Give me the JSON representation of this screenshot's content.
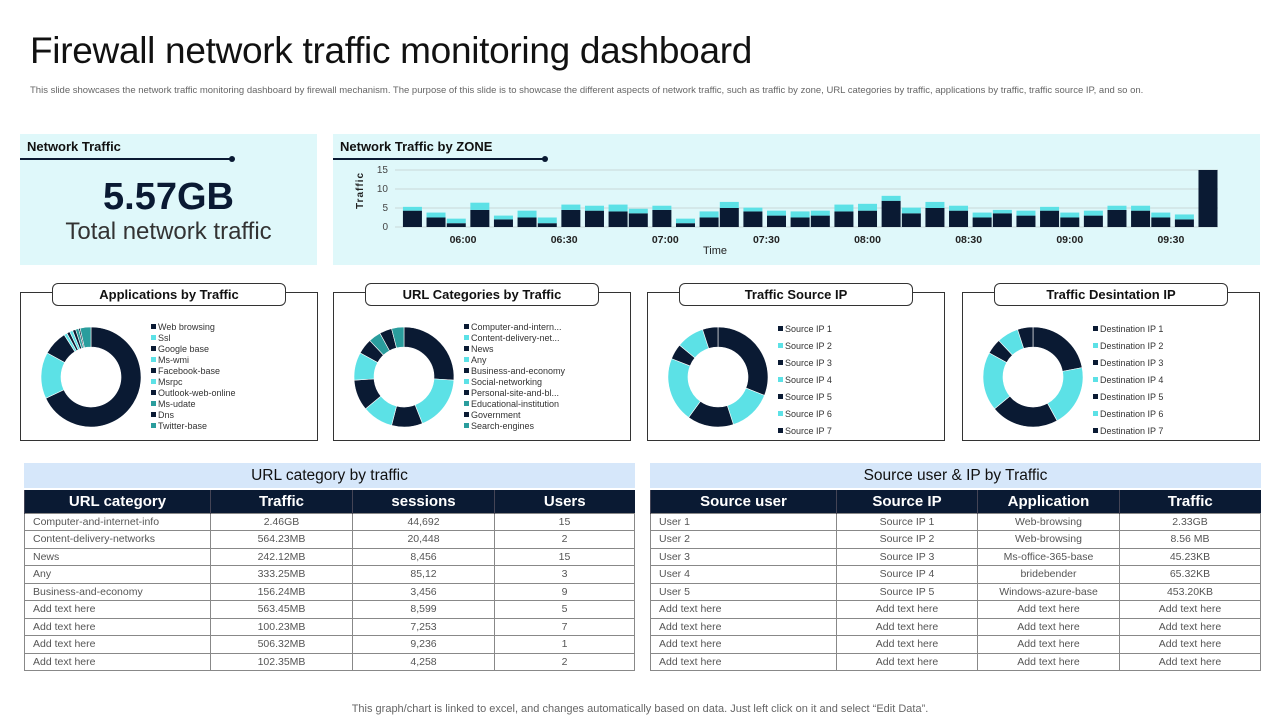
{
  "title": "Firewall network traffic monitoring dashboard",
  "description": "This slide showcases the network traffic monitoring dashboard by firewall mechanism. The purpose of this slide is to showcase the different aspects of network traffic, such as traffic by zone, URL categories by traffic, applications by traffic, traffic source IP, and so on.",
  "network_traffic": {
    "heading": "Network Traffic",
    "value": "5.57GB",
    "caption": "Total network traffic"
  },
  "colors": {
    "dark": "#0a1a33",
    "cyan": "#5ce1e6",
    "teal": "#2a9d9d",
    "panel": "#dff8fa",
    "table_title": "#d6e7fa"
  },
  "chart_data": [
    {
      "type": "bar",
      "stacked": true,
      "title": "Network Traffic by ZONE",
      "xlabel": "Time",
      "ylabel": "Traffic",
      "ylim": [
        0,
        15
      ],
      "yticks": [
        0,
        5,
        10,
        15
      ],
      "grid": true,
      "xticks": [
        "06:00",
        "06:30",
        "07:00",
        "07:30",
        "08:00",
        "08:30",
        "09:00",
        "09:30"
      ],
      "x": [
        "05:45",
        "05:52",
        "05:58",
        "06:05",
        "06:12",
        "06:19",
        "06:25",
        "06:32",
        "06:39",
        "06:46",
        "06:52",
        "06:59",
        "07:06",
        "07:13",
        "07:19",
        "07:26",
        "07:33",
        "07:40",
        "07:46",
        "07:53",
        "08:00",
        "08:07",
        "08:13",
        "08:20",
        "08:27",
        "08:34",
        "08:40",
        "08:47",
        "08:54",
        "09:00",
        "09:07",
        "09:14",
        "09:21",
        "09:27",
        "09:34",
        "09:41"
      ],
      "series": [
        {
          "color": "#0a1a33",
          "values": [
            4.3,
            2.5,
            1,
            4.5,
            2,
            2.5,
            1,
            4.5,
            4.3,
            4.1,
            3.6,
            4.5,
            1,
            2.5,
            5,
            4.1,
            3,
            2.5,
            3,
            4.1,
            4.3,
            6.9,
            3.6,
            5,
            4.3,
            2.5,
            3.6,
            3,
            4.3,
            2.5,
            3,
            4.5,
            4.3,
            2.5,
            2,
            15
          ]
        },
        {
          "color": "#5ce1e6",
          "values": [
            1,
            1.3,
            1.2,
            1.9,
            1,
            1.8,
            1.5,
            1.4,
            1.3,
            1.8,
            1.2,
            1.1,
            1.2,
            1.6,
            1.6,
            1,
            1.3,
            1.6,
            1.3,
            1.8,
            1.8,
            1.3,
            1.5,
            1.6,
            1.3,
            1.3,
            0.9,
            1.3,
            1,
            1.3,
            1.3,
            1.1,
            1.3,
            1.3,
            1.3,
            0
          ]
        }
      ]
    },
    {
      "type": "pie",
      "donut": true,
      "title": "Applications by Traffic",
      "labels": [
        "Web browsing",
        "Ssl",
        "Google base",
        "Ms-wmi",
        "Facebook-base",
        "Msrpc",
        "Outlook-web-online",
        "Ms-udate",
        "Dns",
        "Twitter-base"
      ],
      "values": [
        68,
        15,
        8,
        1,
        1,
        1,
        1,
        1,
        0.5,
        3.5
      ],
      "colors": [
        "#0a1a33",
        "#5ce1e6",
        "#0a1a33",
        "#5ce1e6",
        "#0a1a33",
        "#5ce1e6",
        "#0a1a33",
        "#2a9d9d",
        "#0a1a33",
        "#2a9d9d"
      ]
    },
    {
      "type": "pie",
      "donut": true,
      "title": "URL Categories by Traffic",
      "labels": [
        "Computer-and-intern...",
        "Content-delivery-net...",
        "News",
        "Any",
        "Business-and-economy",
        "Social-networking",
        "Personal-site-and-bl...",
        "Educational-institution",
        "Government",
        "Search-engines"
      ],
      "values": [
        26,
        18,
        10,
        10,
        10,
        9,
        5,
        4,
        4,
        4
      ],
      "colors": [
        "#0a1a33",
        "#5ce1e6",
        "#0a1a33",
        "#5ce1e6",
        "#0a1a33",
        "#5ce1e6",
        "#0a1a33",
        "#2a9d9d",
        "#0a1a33",
        "#2a9d9d"
      ]
    },
    {
      "type": "pie",
      "donut": true,
      "title": "Traffic Source IP",
      "labels": [
        "Source IP  1",
        "Source IP  2",
        "Source IP  3",
        "Source IP  4",
        "Source IP  5",
        "Source IP  6",
        "Source IP  7"
      ],
      "values": [
        31,
        14,
        15,
        21,
        5,
        9,
        5
      ],
      "colors": [
        "#0a1a33",
        "#5ce1e6",
        "#0a1a33",
        "#5ce1e6",
        "#0a1a33",
        "#5ce1e6",
        "#0a1a33"
      ]
    },
    {
      "type": "pie",
      "donut": true,
      "title": "Traffic Desintation IP",
      "labels": [
        "Destination IP  1",
        "Destination IP  2",
        "Destination IP  3",
        "Destination IP  4",
        "Destination IP  5",
        "Destination IP  6",
        "Destination IP  7"
      ],
      "values": [
        22,
        20,
        22,
        19,
        5,
        7,
        5
      ],
      "colors": [
        "#0a1a33",
        "#5ce1e6",
        "#0a1a33",
        "#5ce1e6",
        "#0a1a33",
        "#5ce1e6",
        "#0a1a33"
      ]
    }
  ],
  "url_table": {
    "title": "URL category by traffic",
    "headers": [
      "URL category",
      "Traffic",
      "sessions",
      "Users"
    ],
    "rows": [
      [
        "Computer-and-internet-info",
        "2.46GB",
        "44,692",
        "15"
      ],
      [
        "Content-delivery-networks",
        "564.23MB",
        "20,448",
        "2"
      ],
      [
        "News",
        "242.12MB",
        "8,456",
        "15"
      ],
      [
        "Any",
        "333.25MB",
        "85,12",
        "3"
      ],
      [
        "Business-and-economy",
        "156.24MB",
        "3,456",
        "9"
      ],
      [
        "Add text here",
        "563.45MB",
        "8,599",
        "5"
      ],
      [
        "Add text here",
        "100.23MB",
        "7,253",
        "7"
      ],
      [
        "Add text here",
        "506.32MB",
        "9,236",
        "1"
      ],
      [
        "Add text here",
        "102.35MB",
        "4,258",
        "2"
      ]
    ]
  },
  "source_table": {
    "title": "Source user & IP by Traffic",
    "headers": [
      "Source user",
      "Source IP",
      "Application",
      "Traffic"
    ],
    "rows": [
      [
        "User 1",
        "Source IP  1",
        "Web-browsing",
        "2.33GB"
      ],
      [
        "User 2",
        "Source IP  2",
        "Web-browsing",
        "8.56 MB"
      ],
      [
        "User 3",
        "Source IP  3",
        "Ms-office-365-base",
        "45.23KB"
      ],
      [
        "User 4",
        "Source IP  4",
        "bridebender",
        "65.32KB"
      ],
      [
        "User 5",
        "Source IP  5",
        "Windows-azure-base",
        "453.20KB"
      ],
      [
        "Add text here",
        "Add text here",
        "Add text here",
        "Add text here"
      ],
      [
        "Add text here",
        "Add text here",
        "Add text here",
        "Add text here"
      ],
      [
        "Add text here",
        "Add text here",
        "Add text here",
        "Add text here"
      ],
      [
        "Add text here",
        "Add text here",
        "Add text here",
        "Add text here"
      ]
    ]
  },
  "footer": "This graph/chart is linked to excel,  and changes automatically based on data. Just left click on it and select “Edit Data”."
}
